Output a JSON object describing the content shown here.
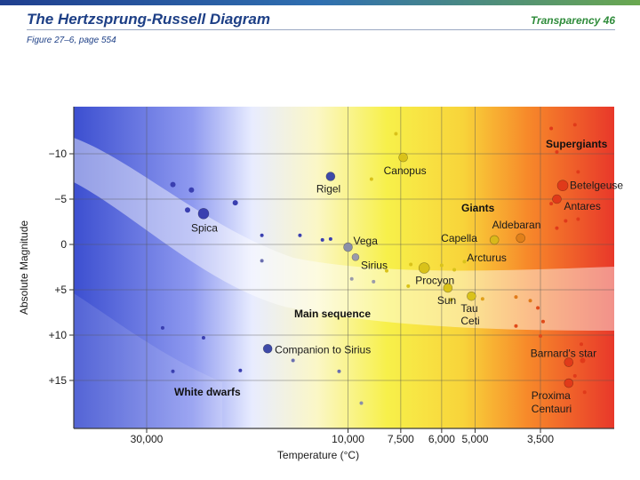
{
  "header": {
    "title": "The Hertzsprung-Russell Diagram",
    "figure_ref": "Figure 27–6, page 554",
    "transparency": "Transparency 46"
  },
  "colors": {
    "header_blue": "#1d3f86",
    "header_green": "#2e8b3a",
    "hot_blue": "#4a5bd6",
    "cool_red": "#e8382a",
    "yellow": "#f5ee4a"
  },
  "chart_data": {
    "type": "scatter",
    "title": "The Hertzsprung-Russell Diagram",
    "xlabel": "Temperature (°C)",
    "ylabel": "Absolute Magnitude",
    "x_axis_note": "log scale, temperature decreasing to the right",
    "xlim": [
      40000,
      2600
    ],
    "ylim": [
      -14,
      19
    ],
    "x_ticks": [
      {
        "value": 30000,
        "label": "30,000"
      },
      {
        "value": 10000,
        "label": "10,000"
      },
      {
        "value": 7500,
        "label": "7,500"
      },
      {
        "value": 6000,
        "label": "6,000"
      },
      {
        "value": 5000,
        "label": "5,000"
      },
      {
        "value": 3500,
        "label": "3,500"
      }
    ],
    "y_ticks": [
      {
        "value": -10,
        "label": "−10"
      },
      {
        "value": -5,
        "label": "−5"
      },
      {
        "value": 0,
        "label": "0"
      },
      {
        "value": 5,
        "label": "+5"
      },
      {
        "value": 10,
        "label": "+10"
      },
      {
        "value": 15,
        "label": "+15"
      }
    ],
    "region_labels": [
      {
        "text": "Supergiants",
        "temp": 3100,
        "mag": -11
      },
      {
        "text": "Giants",
        "temp": 5050,
        "mag": -4.0
      },
      {
        "text": "Main sequence",
        "temp": 8200,
        "mag": 7.4
      },
      {
        "text": "White dwarfs",
        "temp": 14000,
        "mag": 16.2
      }
    ],
    "named_stars": [
      {
        "name": "Canopus",
        "temp": 7400,
        "mag": -9.6,
        "size": 5,
        "color": "#d9c21a",
        "label_dx": -22,
        "label_dy": 19,
        "anchor": "start"
      },
      {
        "name": "Rigel",
        "temp": 11000,
        "mag": -7.5,
        "size": 5,
        "color": "#3e4aa8",
        "label_dx": -16,
        "label_dy": 18,
        "anchor": "start"
      },
      {
        "name": "Spica",
        "temp": 22000,
        "mag": -3.4,
        "size": 6,
        "color": "#3a3fb0",
        "label_dx": -14,
        "label_dy": 20,
        "anchor": "start"
      },
      {
        "name": "Vega",
        "temp": 10000,
        "mag": 0.3,
        "size": 5,
        "color": "#8a8fa8",
        "label_dx": 6,
        "label_dy": -3,
        "anchor": "start"
      },
      {
        "name": "Sirius",
        "temp": 9600,
        "mag": 1.4,
        "size": 4,
        "color": "#9a9aaa",
        "label_dx": 6,
        "label_dy": 13,
        "anchor": "start"
      },
      {
        "name": "Procyon",
        "temp": 6600,
        "mag": 2.6,
        "size": 6,
        "color": "#d9c21a",
        "label_dx": -10,
        "label_dy": 18,
        "anchor": "start"
      },
      {
        "name": "Sun",
        "temp": 5800,
        "mag": 4.8,
        "size": 5,
        "color": "#d9c21a",
        "label_dx": -12,
        "label_dy": 18,
        "anchor": "start"
      },
      {
        "name": "Tau",
        "temp": 5100,
        "mag": 5.7,
        "size": 5,
        "color": "#d9c21a",
        "label_dx": -12,
        "label_dy": 18,
        "anchor": "start"
      },
      {
        "name": "Ceti",
        "temp": 5100,
        "mag": 5.7,
        "size": 0,
        "color": "#d9c21a",
        "label_dx": -12,
        "label_dy": 32,
        "anchor": "start"
      },
      {
        "name": "Capella",
        "temp": 4500,
        "mag": -0.5,
        "size": 5,
        "color": "#d9b81a",
        "label_dx": -60,
        "label_dy": 2,
        "anchor": "start"
      },
      {
        "name": "Aldebaran",
        "temp": 3900,
        "mag": -0.7,
        "size": 5,
        "color": "#e0801a",
        "label_dx": -32,
        "label_dy": -11,
        "anchor": "start"
      },
      {
        "name": "Arcturus",
        "temp": 4700,
        "mag": 0.7,
        "size": 0,
        "color": "#e0a01a",
        "label_dx": -22,
        "label_dy": 12,
        "anchor": "start"
      },
      {
        "name": "Betelgeuse",
        "temp": 3100,
        "mag": -6.5,
        "size": 6,
        "color": "#e03a1a",
        "label_dx": 8,
        "label_dy": 4,
        "anchor": "start"
      },
      {
        "name": "Antares",
        "temp": 3200,
        "mag": -5.0,
        "size": 5,
        "color": "#e03a1a",
        "label_dx": 8,
        "label_dy": 12,
        "anchor": "start"
      },
      {
        "name": "Companion to Sirius",
        "temp": 15500,
        "mag": 11.5,
        "size": 5,
        "color": "#3e4aa8",
        "label_dx": 8,
        "label_dy": 5,
        "anchor": "start"
      },
      {
        "name": "Barnard's star",
        "temp": 3000,
        "mag": 13.0,
        "size": 5,
        "color": "#e03a1a",
        "label_dx": -43,
        "label_dy": -6,
        "anchor": "start"
      },
      {
        "name": "Proxima",
        "temp": 3000,
        "mag": 15.3,
        "size": 5,
        "color": "#e03a1a",
        "label_dx": -42,
        "label_dy": 18,
        "anchor": "start"
      },
      {
        "name": "Centauri",
        "temp": 3000,
        "mag": 15.3,
        "size": 0,
        "color": "#e03a1a",
        "label_dx": -42,
        "label_dy": 33,
        "anchor": "start"
      }
    ],
    "other_stars": [
      {
        "temp": 7700,
        "mag": -12.2,
        "color": "#d9c21a",
        "size": 2
      },
      {
        "temp": 8800,
        "mag": -7.2,
        "color": "#d9c21a",
        "size": 2
      },
      {
        "temp": 26000,
        "mag": -6.6,
        "color": "#3a3fb0",
        "size": 3
      },
      {
        "temp": 23500,
        "mag": -6.0,
        "color": "#3a3fb0",
        "size": 3
      },
      {
        "temp": 18500,
        "mag": -4.6,
        "color": "#3a3fb0",
        "size": 3
      },
      {
        "temp": 24000,
        "mag": -3.8,
        "color": "#3a3fb0",
        "size": 3
      },
      {
        "temp": 16000,
        "mag": -1.0,
        "color": "#3a3fb0",
        "size": 2
      },
      {
        "temp": 13000,
        "mag": -1.0,
        "color": "#3a3fb0",
        "size": 2
      },
      {
        "temp": 11500,
        "mag": -0.5,
        "color": "#3a3fb0",
        "size": 2
      },
      {
        "temp": 11000,
        "mag": -0.6,
        "color": "#3a3fb0",
        "size": 2
      },
      {
        "temp": 16000,
        "mag": 1.8,
        "color": "#6a6fb0",
        "size": 2
      },
      {
        "temp": 9800,
        "mag": 3.8,
        "color": "#9a9aaa",
        "size": 2
      },
      {
        "temp": 8700,
        "mag": 4.1,
        "color": "#9a9aaa",
        "size": 2
      },
      {
        "temp": 8100,
        "mag": 2.9,
        "color": "#d9c21a",
        "size": 2
      },
      {
        "temp": 7100,
        "mag": 2.2,
        "color": "#d9c21a",
        "size": 2
      },
      {
        "temp": 7200,
        "mag": 4.6,
        "color": "#d9c21a",
        "size": 2
      },
      {
        "temp": 6000,
        "mag": 2.3,
        "color": "#d9c21a",
        "size": 2
      },
      {
        "temp": 5600,
        "mag": 2.8,
        "color": "#d9c21a",
        "size": 2
      },
      {
        "temp": 5300,
        "mag": 1.9,
        "color": "#d9c21a",
        "size": 2
      },
      {
        "temp": 5700,
        "mag": 6.1,
        "color": "#d9c21a",
        "size": 2
      },
      {
        "temp": 4800,
        "mag": 6.0,
        "color": "#e0a01a",
        "size": 2
      },
      {
        "temp": 4000,
        "mag": 5.8,
        "color": "#e07a1a",
        "size": 2
      },
      {
        "temp": 3700,
        "mag": 6.2,
        "color": "#e07a1a",
        "size": 2
      },
      {
        "temp": 3450,
        "mag": 8.5,
        "color": "#e04a1a",
        "size": 2
      },
      {
        "temp": 4000,
        "mag": 9.0,
        "color": "#e04a1a",
        "size": 2
      },
      {
        "temp": 3500,
        "mag": 10.1,
        "color": "#e04a1a",
        "size": 2
      },
      {
        "temp": 3550,
        "mag": 7.0,
        "color": "#e04a1a",
        "size": 2
      },
      {
        "temp": 3300,
        "mag": -12.8,
        "color": "#e03a1a",
        "size": 2
      },
      {
        "temp": 2900,
        "mag": -13.2,
        "color": "#e03a1a",
        "size": 2
      },
      {
        "temp": 3200,
        "mag": -10.2,
        "color": "#e03a1a",
        "size": 2
      },
      {
        "temp": 2850,
        "mag": -8.0,
        "color": "#e03a1a",
        "size": 2
      },
      {
        "temp": 3300,
        "mag": -4.5,
        "color": "#e03a1a",
        "size": 2
      },
      {
        "temp": 3050,
        "mag": -2.6,
        "color": "#e03a1a",
        "size": 2
      },
      {
        "temp": 2850,
        "mag": -2.8,
        "color": "#e03a1a",
        "size": 2
      },
      {
        "temp": 3200,
        "mag": -1.8,
        "color": "#e03a1a",
        "size": 2
      },
      {
        "temp": 2800,
        "mag": 11.0,
        "color": "#e03a1a",
        "size": 2
      },
      {
        "temp": 2780,
        "mag": 12.8,
        "color": "#e03a1a",
        "size": 3
      },
      {
        "temp": 2750,
        "mag": 16.3,
        "color": "#e03a1a",
        "size": 2
      },
      {
        "temp": 2900,
        "mag": 14.5,
        "color": "#e03a1a",
        "size": 2
      },
      {
        "temp": 27500,
        "mag": 9.2,
        "color": "#3a3fb0",
        "size": 2
      },
      {
        "temp": 22000,
        "mag": 10.3,
        "color": "#3a3fb0",
        "size": 2
      },
      {
        "temp": 26000,
        "mag": 14.0,
        "color": "#3a3fb0",
        "size": 2
      },
      {
        "temp": 18000,
        "mag": 13.9,
        "color": "#3a3fb0",
        "size": 2
      },
      {
        "temp": 13500,
        "mag": 12.8,
        "color": "#6a6fb0",
        "size": 2
      },
      {
        "temp": 10500,
        "mag": 14.0,
        "color": "#6a6fb0",
        "size": 2
      },
      {
        "temp": 9300,
        "mag": 17.5,
        "color": "#8a8fa8",
        "size": 2
      }
    ],
    "regions": [
      "white dwarf band",
      "main sequence band"
    ],
    "grid": true
  }
}
